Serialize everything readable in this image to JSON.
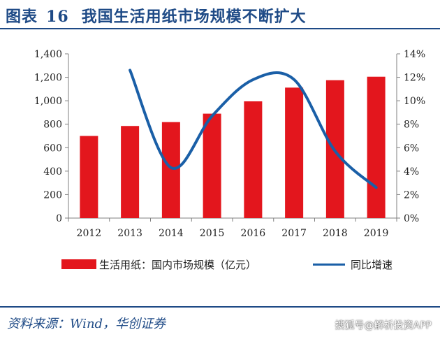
{
  "figure": {
    "label": "图表",
    "number": "16",
    "title": "我国生活用纸市场规模不断扩大"
  },
  "chart_data": {
    "type": "bar",
    "categories": [
      "2012",
      "2013",
      "2014",
      "2015",
      "2016",
      "2017",
      "2018",
      "2019"
    ],
    "series": [
      {
        "name": "生活用纸：国内市场规模（亿元）",
        "type": "bar",
        "axis": "left",
        "color": "#e3161d",
        "values": [
          700,
          785,
          818,
          890,
          995,
          1112,
          1175,
          1205
        ]
      },
      {
        "name": "同比增速",
        "type": "line",
        "axis": "right",
        "color": "#1a5fa7",
        "values": [
          null,
          12.6,
          4.3,
          8.7,
          11.8,
          11.8,
          5.7,
          2.6
        ]
      }
    ],
    "left_axis": {
      "min": 0,
      "max": 1400,
      "step": 200,
      "ticks": [
        "0",
        "200",
        "400",
        "600",
        "800",
        "1,000",
        "1,200",
        "1,400"
      ]
    },
    "right_axis": {
      "min": 0,
      "max": 14,
      "step": 2,
      "ticks": [
        "0%",
        "2%",
        "4%",
        "6%",
        "8%",
        "10%",
        "12%",
        "14%"
      ]
    },
    "grid": false,
    "legend_position": "bottom"
  },
  "legend": {
    "bar_label": "生活用纸：国内市场规模（亿元）",
    "line_label": "同比增速"
  },
  "source": "资料来源：Wind，华创证券",
  "watermark": "搜狐号@解析投资APP"
}
